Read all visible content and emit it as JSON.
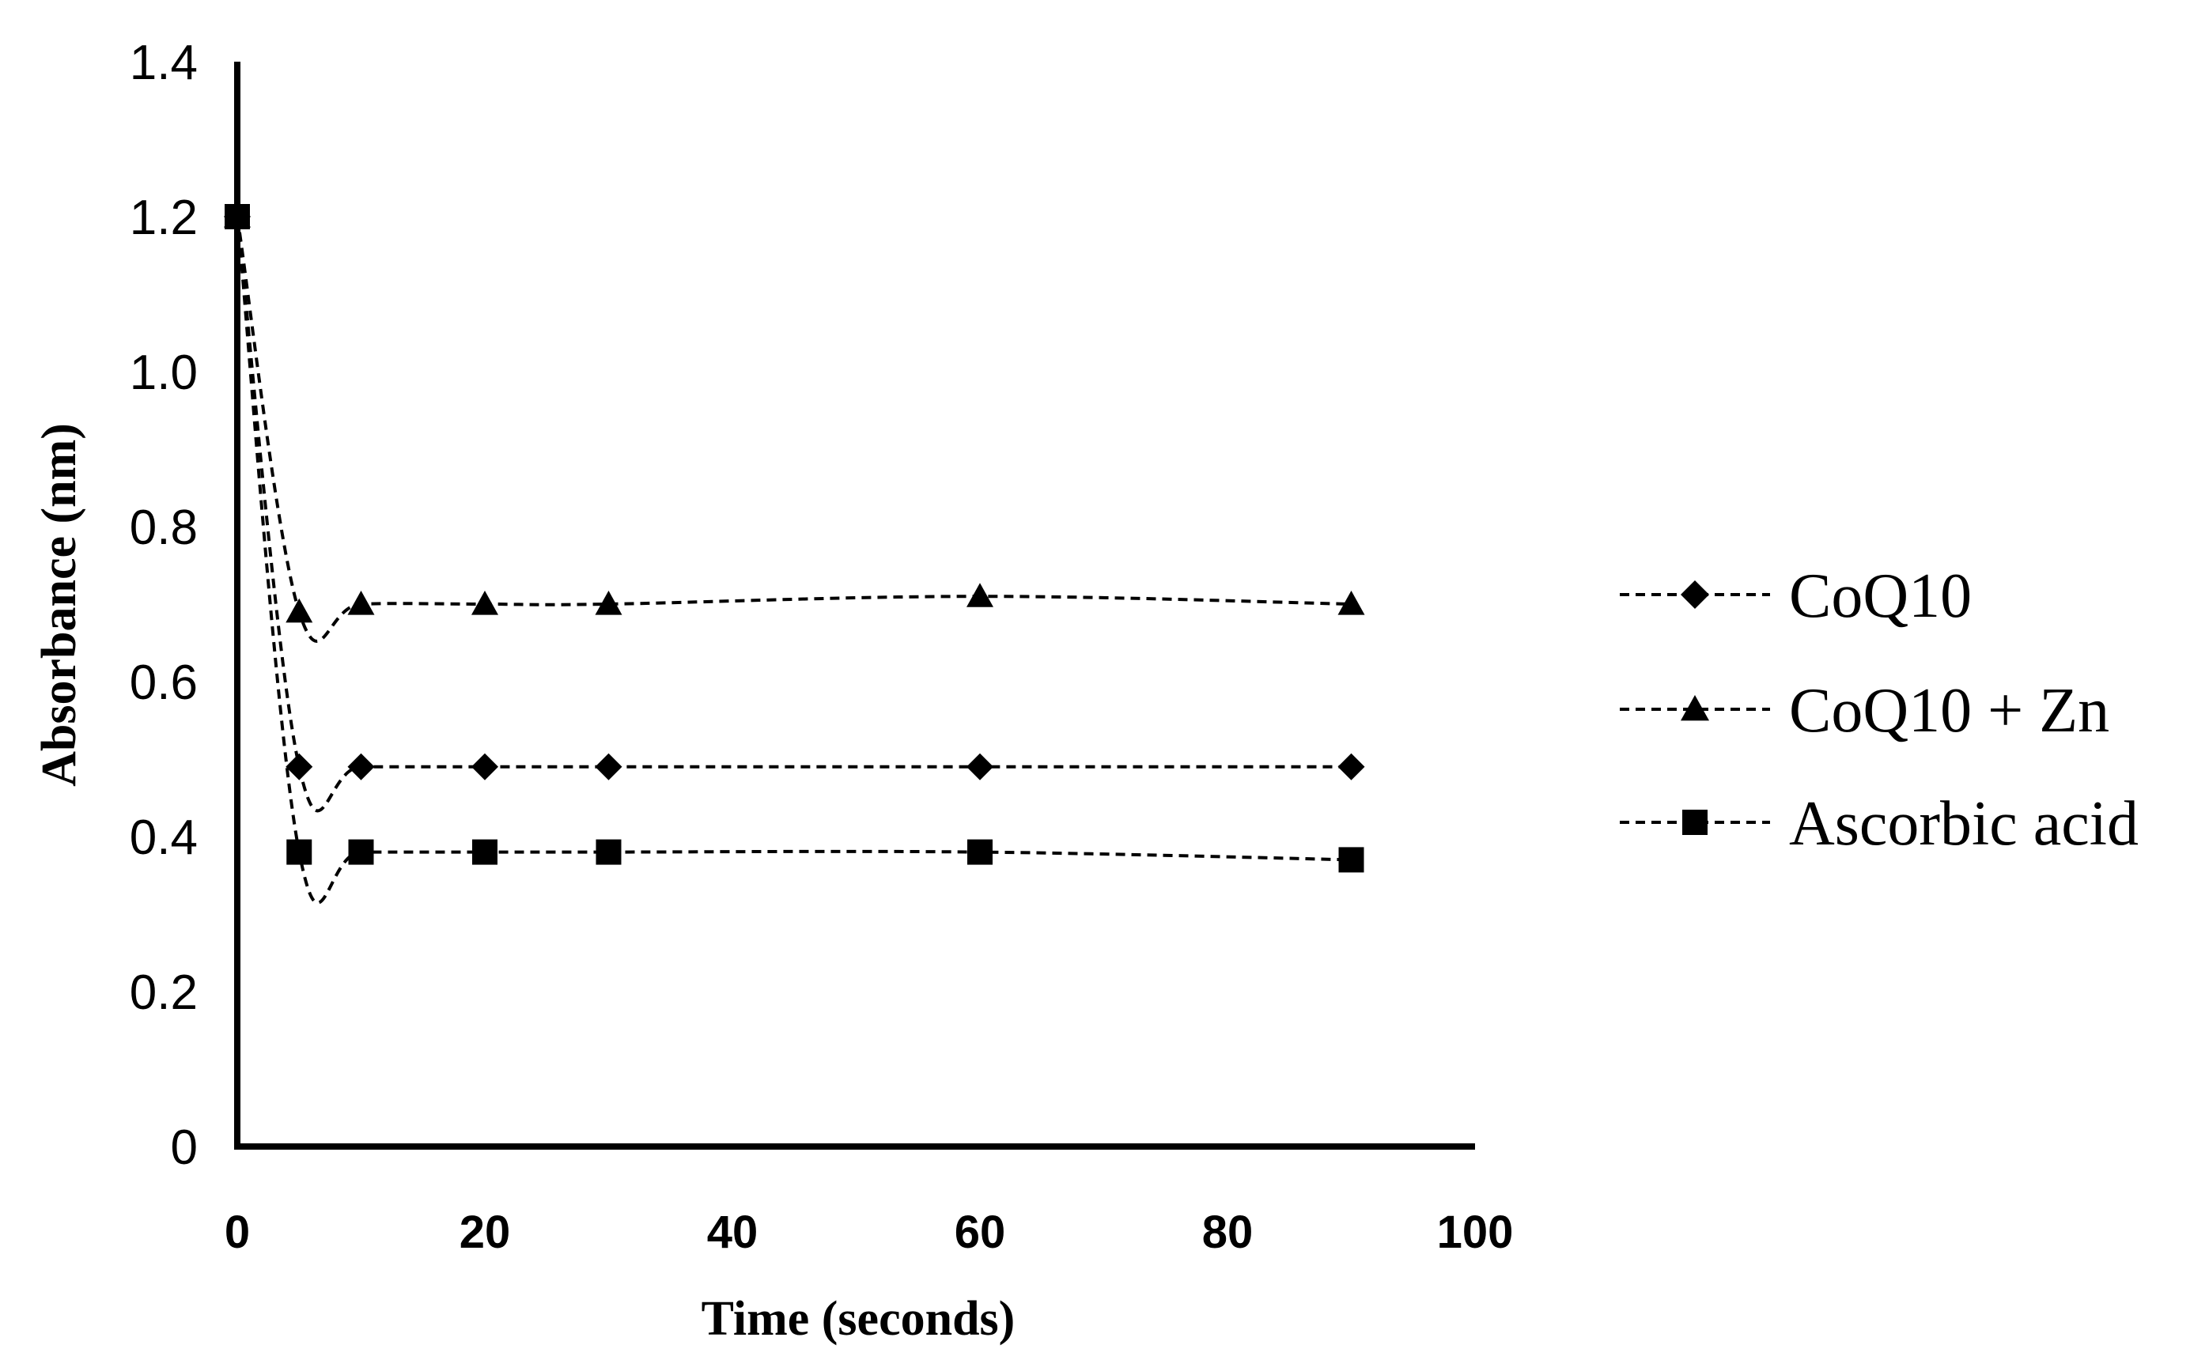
{
  "chart_data": {
    "type": "line",
    "title": "",
    "xlabel": "Time (seconds)",
    "ylabel": "Absorbance (nm)",
    "xlim": [
      0,
      100
    ],
    "ylim": [
      0,
      1.4
    ],
    "x_ticks": [
      0,
      20,
      40,
      60,
      80,
      100
    ],
    "x_tick_labels": [
      "0",
      "20",
      "40",
      "60",
      "80",
      "100"
    ],
    "y_ticks": [
      0,
      0.2,
      0.4,
      0.6,
      0.8,
      1.0,
      1.2,
      1.4
    ],
    "y_tick_labels": [
      "0",
      "0.2",
      "0.4",
      "0.6",
      "0.8",
      "1.0",
      "1.2",
      "1.4"
    ],
    "grid": false,
    "legend_position": "right",
    "x": [
      0,
      5,
      10,
      20,
      30,
      60,
      90
    ],
    "series": [
      {
        "name": "CoQ10",
        "marker": "diamond",
        "values": [
          1.2,
          0.49,
          0.49,
          0.49,
          0.49,
          0.49,
          0.49
        ]
      },
      {
        "name": "CoQ10 + Zn",
        "marker": "triangle",
        "values": [
          1.2,
          0.69,
          0.7,
          0.7,
          0.7,
          0.71,
          0.7
        ]
      },
      {
        "name": "Ascorbic acid",
        "marker": "square",
        "values": [
          1.2,
          0.38,
          0.38,
          0.38,
          0.38,
          0.38,
          0.37
        ]
      }
    ]
  }
}
